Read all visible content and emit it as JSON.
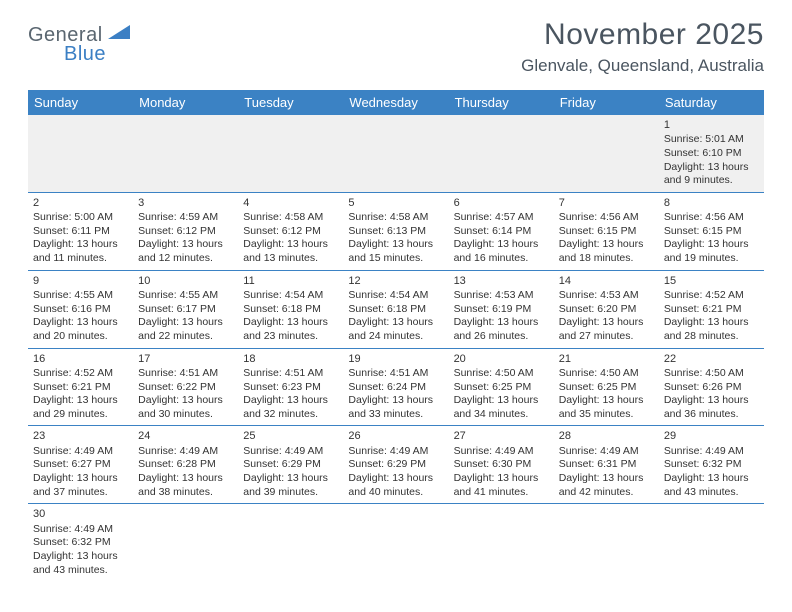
{
  "logo": {
    "text1": "General",
    "text2": "Blue"
  },
  "title": "November 2025",
  "location": "Glenvale, Queensland, Australia",
  "colors": {
    "header_bg": "#3b82c4",
    "header_fg": "#ffffff",
    "cell_border": "#3b82c4",
    "wk1_bg": "#f0f0f0",
    "title_color": "#4a5560",
    "logo_gray": "#5a6670",
    "logo_blue": "#3b7fc4"
  },
  "weekdays": [
    "Sunday",
    "Monday",
    "Tuesday",
    "Wednesday",
    "Thursday",
    "Friday",
    "Saturday"
  ],
  "weeks": [
    [
      null,
      null,
      null,
      null,
      null,
      null,
      {
        "n": "1",
        "sr": "5:01 AM",
        "ss": "6:10 PM",
        "dl": "13 hours and 9 minutes."
      }
    ],
    [
      {
        "n": "2",
        "sr": "5:00 AM",
        "ss": "6:11 PM",
        "dl": "13 hours and 11 minutes."
      },
      {
        "n": "3",
        "sr": "4:59 AM",
        "ss": "6:12 PM",
        "dl": "13 hours and 12 minutes."
      },
      {
        "n": "4",
        "sr": "4:58 AM",
        "ss": "6:12 PM",
        "dl": "13 hours and 13 minutes."
      },
      {
        "n": "5",
        "sr": "4:58 AM",
        "ss": "6:13 PM",
        "dl": "13 hours and 15 minutes."
      },
      {
        "n": "6",
        "sr": "4:57 AM",
        "ss": "6:14 PM",
        "dl": "13 hours and 16 minutes."
      },
      {
        "n": "7",
        "sr": "4:56 AM",
        "ss": "6:15 PM",
        "dl": "13 hours and 18 minutes."
      },
      {
        "n": "8",
        "sr": "4:56 AM",
        "ss": "6:15 PM",
        "dl": "13 hours and 19 minutes."
      }
    ],
    [
      {
        "n": "9",
        "sr": "4:55 AM",
        "ss": "6:16 PM",
        "dl": "13 hours and 20 minutes."
      },
      {
        "n": "10",
        "sr": "4:55 AM",
        "ss": "6:17 PM",
        "dl": "13 hours and 22 minutes."
      },
      {
        "n": "11",
        "sr": "4:54 AM",
        "ss": "6:18 PM",
        "dl": "13 hours and 23 minutes."
      },
      {
        "n": "12",
        "sr": "4:54 AM",
        "ss": "6:18 PM",
        "dl": "13 hours and 24 minutes."
      },
      {
        "n": "13",
        "sr": "4:53 AM",
        "ss": "6:19 PM",
        "dl": "13 hours and 26 minutes."
      },
      {
        "n": "14",
        "sr": "4:53 AM",
        "ss": "6:20 PM",
        "dl": "13 hours and 27 minutes."
      },
      {
        "n": "15",
        "sr": "4:52 AM",
        "ss": "6:21 PM",
        "dl": "13 hours and 28 minutes."
      }
    ],
    [
      {
        "n": "16",
        "sr": "4:52 AM",
        "ss": "6:21 PM",
        "dl": "13 hours and 29 minutes."
      },
      {
        "n": "17",
        "sr": "4:51 AM",
        "ss": "6:22 PM",
        "dl": "13 hours and 30 minutes."
      },
      {
        "n": "18",
        "sr": "4:51 AM",
        "ss": "6:23 PM",
        "dl": "13 hours and 32 minutes."
      },
      {
        "n": "19",
        "sr": "4:51 AM",
        "ss": "6:24 PM",
        "dl": "13 hours and 33 minutes."
      },
      {
        "n": "20",
        "sr": "4:50 AM",
        "ss": "6:25 PM",
        "dl": "13 hours and 34 minutes."
      },
      {
        "n": "21",
        "sr": "4:50 AM",
        "ss": "6:25 PM",
        "dl": "13 hours and 35 minutes."
      },
      {
        "n": "22",
        "sr": "4:50 AM",
        "ss": "6:26 PM",
        "dl": "13 hours and 36 minutes."
      }
    ],
    [
      {
        "n": "23",
        "sr": "4:49 AM",
        "ss": "6:27 PM",
        "dl": "13 hours and 37 minutes."
      },
      {
        "n": "24",
        "sr": "4:49 AM",
        "ss": "6:28 PM",
        "dl": "13 hours and 38 minutes."
      },
      {
        "n": "25",
        "sr": "4:49 AM",
        "ss": "6:29 PM",
        "dl": "13 hours and 39 minutes."
      },
      {
        "n": "26",
        "sr": "4:49 AM",
        "ss": "6:29 PM",
        "dl": "13 hours and 40 minutes."
      },
      {
        "n": "27",
        "sr": "4:49 AM",
        "ss": "6:30 PM",
        "dl": "13 hours and 41 minutes."
      },
      {
        "n": "28",
        "sr": "4:49 AM",
        "ss": "6:31 PM",
        "dl": "13 hours and 42 minutes."
      },
      {
        "n": "29",
        "sr": "4:49 AM",
        "ss": "6:32 PM",
        "dl": "13 hours and 43 minutes."
      }
    ],
    [
      {
        "n": "30",
        "sr": "4:49 AM",
        "ss": "6:32 PM",
        "dl": "13 hours and 43 minutes."
      },
      null,
      null,
      null,
      null,
      null,
      null
    ]
  ],
  "labels": {
    "sunrise": "Sunrise:",
    "sunset": "Sunset:",
    "daylight": "Daylight:"
  }
}
